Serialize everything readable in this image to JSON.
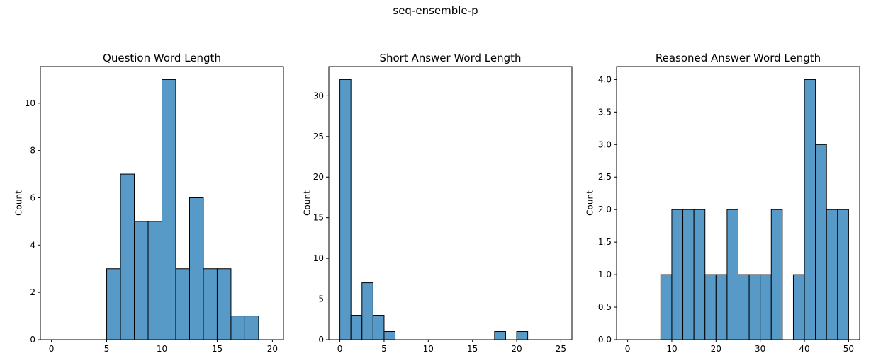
{
  "figure": {
    "suptitle": "seq-ensemble-p"
  },
  "style": {
    "bar_fill": "#5799c7",
    "bar_edge": "#000000"
  },
  "chart_data": [
    {
      "type": "bar",
      "title": "Question Word Length",
      "xlabel": "",
      "ylabel": "Count",
      "xlim": [
        -1,
        21
      ],
      "ylim": [
        0,
        11.55
      ],
      "xticks": [
        0,
        5,
        10,
        15,
        20
      ],
      "yticks": [
        0,
        2,
        4,
        6,
        8,
        10
      ],
      "bins": [
        {
          "x0": 5.0,
          "x1": 6.25,
          "value": 3
        },
        {
          "x0": 6.25,
          "x1": 7.5,
          "value": 7
        },
        {
          "x0": 7.5,
          "x1": 8.75,
          "value": 5
        },
        {
          "x0": 8.75,
          "x1": 10.0,
          "value": 5
        },
        {
          "x0": 10.0,
          "x1": 11.25,
          "value": 11
        },
        {
          "x0": 11.25,
          "x1": 12.5,
          "value": 3
        },
        {
          "x0": 12.5,
          "x1": 13.75,
          "value": 6
        },
        {
          "x0": 13.75,
          "x1": 15.0,
          "value": 3
        },
        {
          "x0": 15.0,
          "x1": 16.25,
          "value": 3
        },
        {
          "x0": 16.25,
          "x1": 17.5,
          "value": 1
        },
        {
          "x0": 17.5,
          "x1": 18.75,
          "value": 1
        }
      ]
    },
    {
      "type": "bar",
      "title": "Short Answer Word Length",
      "xlabel": "",
      "ylabel": "Count",
      "xlim": [
        -1.25,
        26.25
      ],
      "ylim": [
        0,
        33.6
      ],
      "xticks": [
        0,
        5,
        10,
        15,
        20,
        25
      ],
      "yticks": [
        0,
        5,
        10,
        15,
        20,
        25,
        30
      ],
      "bins": [
        {
          "x0": 0.0,
          "x1": 1.25,
          "value": 32
        },
        {
          "x0": 1.25,
          "x1": 2.5,
          "value": 3
        },
        {
          "x0": 2.5,
          "x1": 3.75,
          "value": 7
        },
        {
          "x0": 3.75,
          "x1": 5.0,
          "value": 3
        },
        {
          "x0": 5.0,
          "x1": 6.25,
          "value": 1
        },
        {
          "x0": 17.5,
          "x1": 18.75,
          "value": 1
        },
        {
          "x0": 20.0,
          "x1": 21.25,
          "value": 1
        }
      ]
    },
    {
      "type": "bar",
      "title": "Reasoned Answer Word Length",
      "xlabel": "",
      "ylabel": "Count",
      "xlim": [
        -2.5,
        52.5
      ],
      "ylim": [
        0,
        4.2
      ],
      "xticks": [
        0,
        10,
        20,
        30,
        40,
        50
      ],
      "yticks": [
        "0.0",
        "0.5",
        "1.0",
        "1.5",
        "2.0",
        "2.5",
        "3.0",
        "3.5",
        "4.0"
      ],
      "bins": [
        {
          "x0": 7.5,
          "x1": 10.0,
          "value": 1
        },
        {
          "x0": 10.0,
          "x1": 12.5,
          "value": 2
        },
        {
          "x0": 12.5,
          "x1": 15.0,
          "value": 2
        },
        {
          "x0": 15.0,
          "x1": 17.5,
          "value": 2
        },
        {
          "x0": 17.5,
          "x1": 20.0,
          "value": 1
        },
        {
          "x0": 20.0,
          "x1": 22.5,
          "value": 1
        },
        {
          "x0": 22.5,
          "x1": 25.0,
          "value": 2
        },
        {
          "x0": 25.0,
          "x1": 27.5,
          "value": 1
        },
        {
          "x0": 27.5,
          "x1": 30.0,
          "value": 1
        },
        {
          "x0": 30.0,
          "x1": 32.5,
          "value": 1
        },
        {
          "x0": 32.5,
          "x1": 35.0,
          "value": 2
        },
        {
          "x0": 37.5,
          "x1": 40.0,
          "value": 1
        },
        {
          "x0": 40.0,
          "x1": 42.5,
          "value": 4
        },
        {
          "x0": 42.5,
          "x1": 45.0,
          "value": 3
        },
        {
          "x0": 45.0,
          "x1": 47.5,
          "value": 2
        },
        {
          "x0": 47.5,
          "x1": 50.0,
          "value": 2
        }
      ]
    }
  ]
}
